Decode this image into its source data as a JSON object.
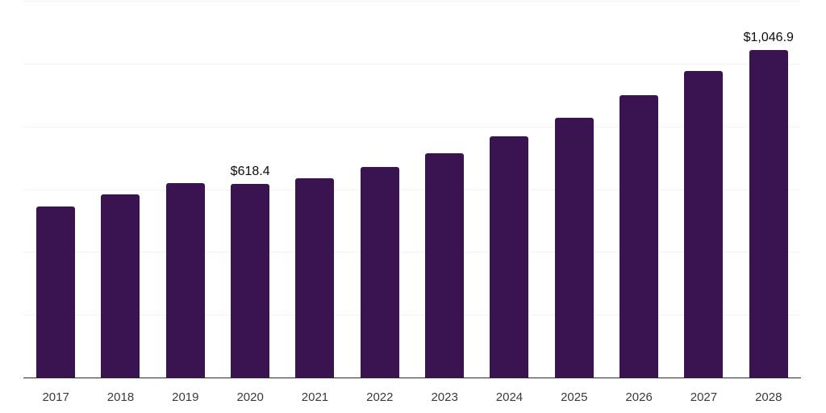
{
  "chart_data": {
    "type": "bar",
    "title": "",
    "xlabel": "",
    "ylabel": "",
    "categories": [
      "2017",
      "2018",
      "2019",
      "2020",
      "2021",
      "2022",
      "2023",
      "2024",
      "2025",
      "2026",
      "2027",
      "2028"
    ],
    "values": [
      547,
      586,
      622,
      618.4,
      638,
      674,
      718,
      772,
      831,
      903,
      978,
      1046.9
    ],
    "data_labels": {
      "2020": "$618.4",
      "2028": "$1,046.9"
    },
    "ylim": [
      0,
      1200
    ],
    "gridline_values": [
      200,
      400,
      600,
      800,
      1000,
      1200
    ],
    "grid": "horizontal-only",
    "legend": "none",
    "y_axis_tick_labels": "none",
    "colors": {
      "bar": "#391450",
      "background": "#ffffff",
      "gridline": "#f2f2f4",
      "axis_line": "#2b2b2b",
      "tick_label": "#3a3a3a",
      "data_label": "#0b0b0b"
    }
  }
}
